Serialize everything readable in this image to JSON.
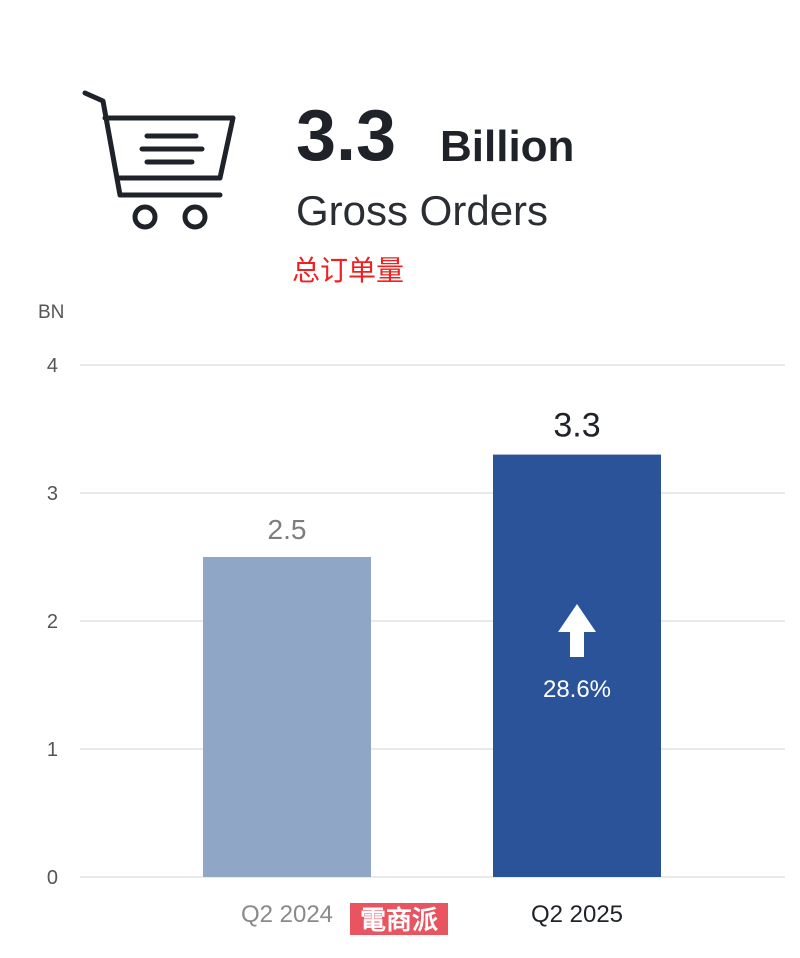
{
  "header": {
    "value": "3.3",
    "unit": "Billion",
    "title": "Gross Orders",
    "subtitle": "总订单量"
  },
  "chart_data": {
    "type": "bar",
    "y_label": "BN",
    "categories": [
      "Q2 2024",
      "Q2 2025"
    ],
    "values": [
      2.5,
      3.3
    ],
    "colors": [
      "#8fa6c7",
      "#2b5399"
    ],
    "ylim": [
      0,
      4
    ],
    "yticks": [
      0,
      1,
      2,
      3,
      4
    ],
    "grid": true,
    "annotation": "28.6%"
  },
  "watermark": "電商派"
}
